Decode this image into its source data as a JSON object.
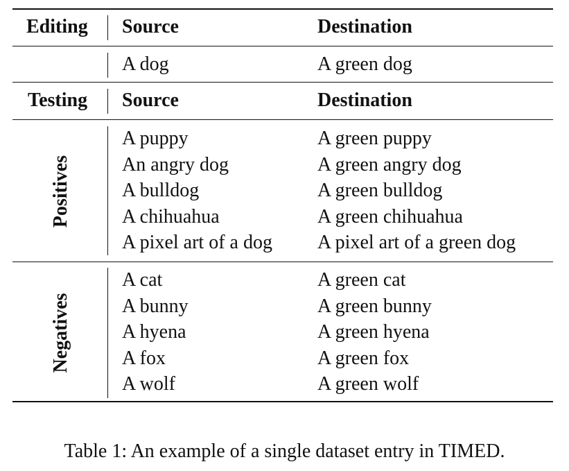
{
  "table": {
    "editing": {
      "label": "Editing",
      "source_header": "Source",
      "destination_header": "Destination",
      "source": "A dog",
      "destination": "A green dog"
    },
    "testing": {
      "label": "Testing",
      "source_header": "Source",
      "destination_header": "Destination"
    },
    "positives": {
      "label": "Positives",
      "rows": [
        {
          "source": "A puppy",
          "destination": "A green puppy"
        },
        {
          "source": "An angry dog",
          "destination": "A green angry dog"
        },
        {
          "source": "A bulldog",
          "destination": "A green bulldog"
        },
        {
          "source": "A chihuahua",
          "destination": "A green chihuahua"
        },
        {
          "source": "A pixel art of a dog",
          "destination": "A pixel art of a green dog"
        }
      ]
    },
    "negatives": {
      "label": "Negatives",
      "rows": [
        {
          "source": "A cat",
          "destination": "A green cat"
        },
        {
          "source": "A bunny",
          "destination": "A green bunny"
        },
        {
          "source": "A hyena",
          "destination": "A green hyena"
        },
        {
          "source": "A fox",
          "destination": "A green fox"
        },
        {
          "source": "A wolf",
          "destination": "A green wolf"
        }
      ]
    }
  },
  "caption": "Table 1: An example of a single dataset entry in TIMED."
}
